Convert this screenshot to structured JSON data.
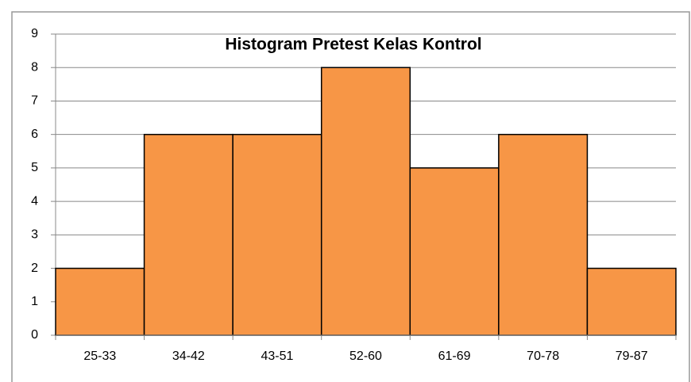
{
  "chart_data": {
    "type": "bar",
    "title": "Histogram Pretest Kelas Kontrol",
    "categories": [
      "25-33",
      "34-42",
      "43-51",
      "52-60",
      "61-69",
      "70-78",
      "79-87"
    ],
    "values": [
      2,
      6,
      6,
      8,
      5,
      6,
      2
    ],
    "color": "#f79646",
    "ylim": [
      0,
      9
    ],
    "yticks": [
      0,
      1,
      2,
      3,
      4,
      5,
      6,
      7,
      8,
      9
    ],
    "grid": true
  }
}
